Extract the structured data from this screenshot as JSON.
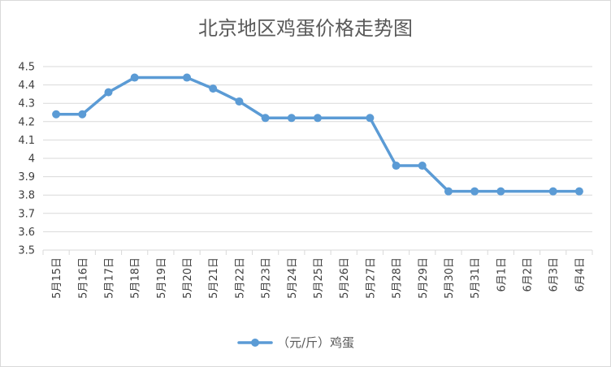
{
  "chart_data": {
    "type": "line",
    "title": "北京地区鸡蛋价格走势图",
    "categories": [
      "5月15日",
      "5月16日",
      "5月17日",
      "5月18日",
      "5月19日",
      "5月20日",
      "5月21日",
      "5月22日",
      "5月23日",
      "5月24日",
      "5月25日",
      "5月26日",
      "5月27日",
      "5月28日",
      "5月29日",
      "5月30日",
      "5月31日",
      "6月1日",
      "6月2日",
      "6月3日",
      "6月4日"
    ],
    "series": [
      {
        "name": "（元/斤）鸡蛋",
        "color": "#5b9bd5",
        "values": [
          4.24,
          4.24,
          4.36,
          4.44,
          null,
          4.44,
          4.38,
          4.31,
          4.22,
          4.22,
          4.22,
          null,
          4.22,
          3.96,
          3.96,
          3.82,
          3.82,
          3.82,
          null,
          3.82,
          3.82
        ]
      }
    ],
    "ylim": [
      3.5,
      4.5
    ],
    "yticks": [
      "3.5",
      "3.6",
      "3.7",
      "3.8",
      "3.9",
      "4",
      "4.1",
      "4.2",
      "4.3",
      "4.4",
      "4.5"
    ],
    "grid": true,
    "legend_position": "bottom"
  }
}
